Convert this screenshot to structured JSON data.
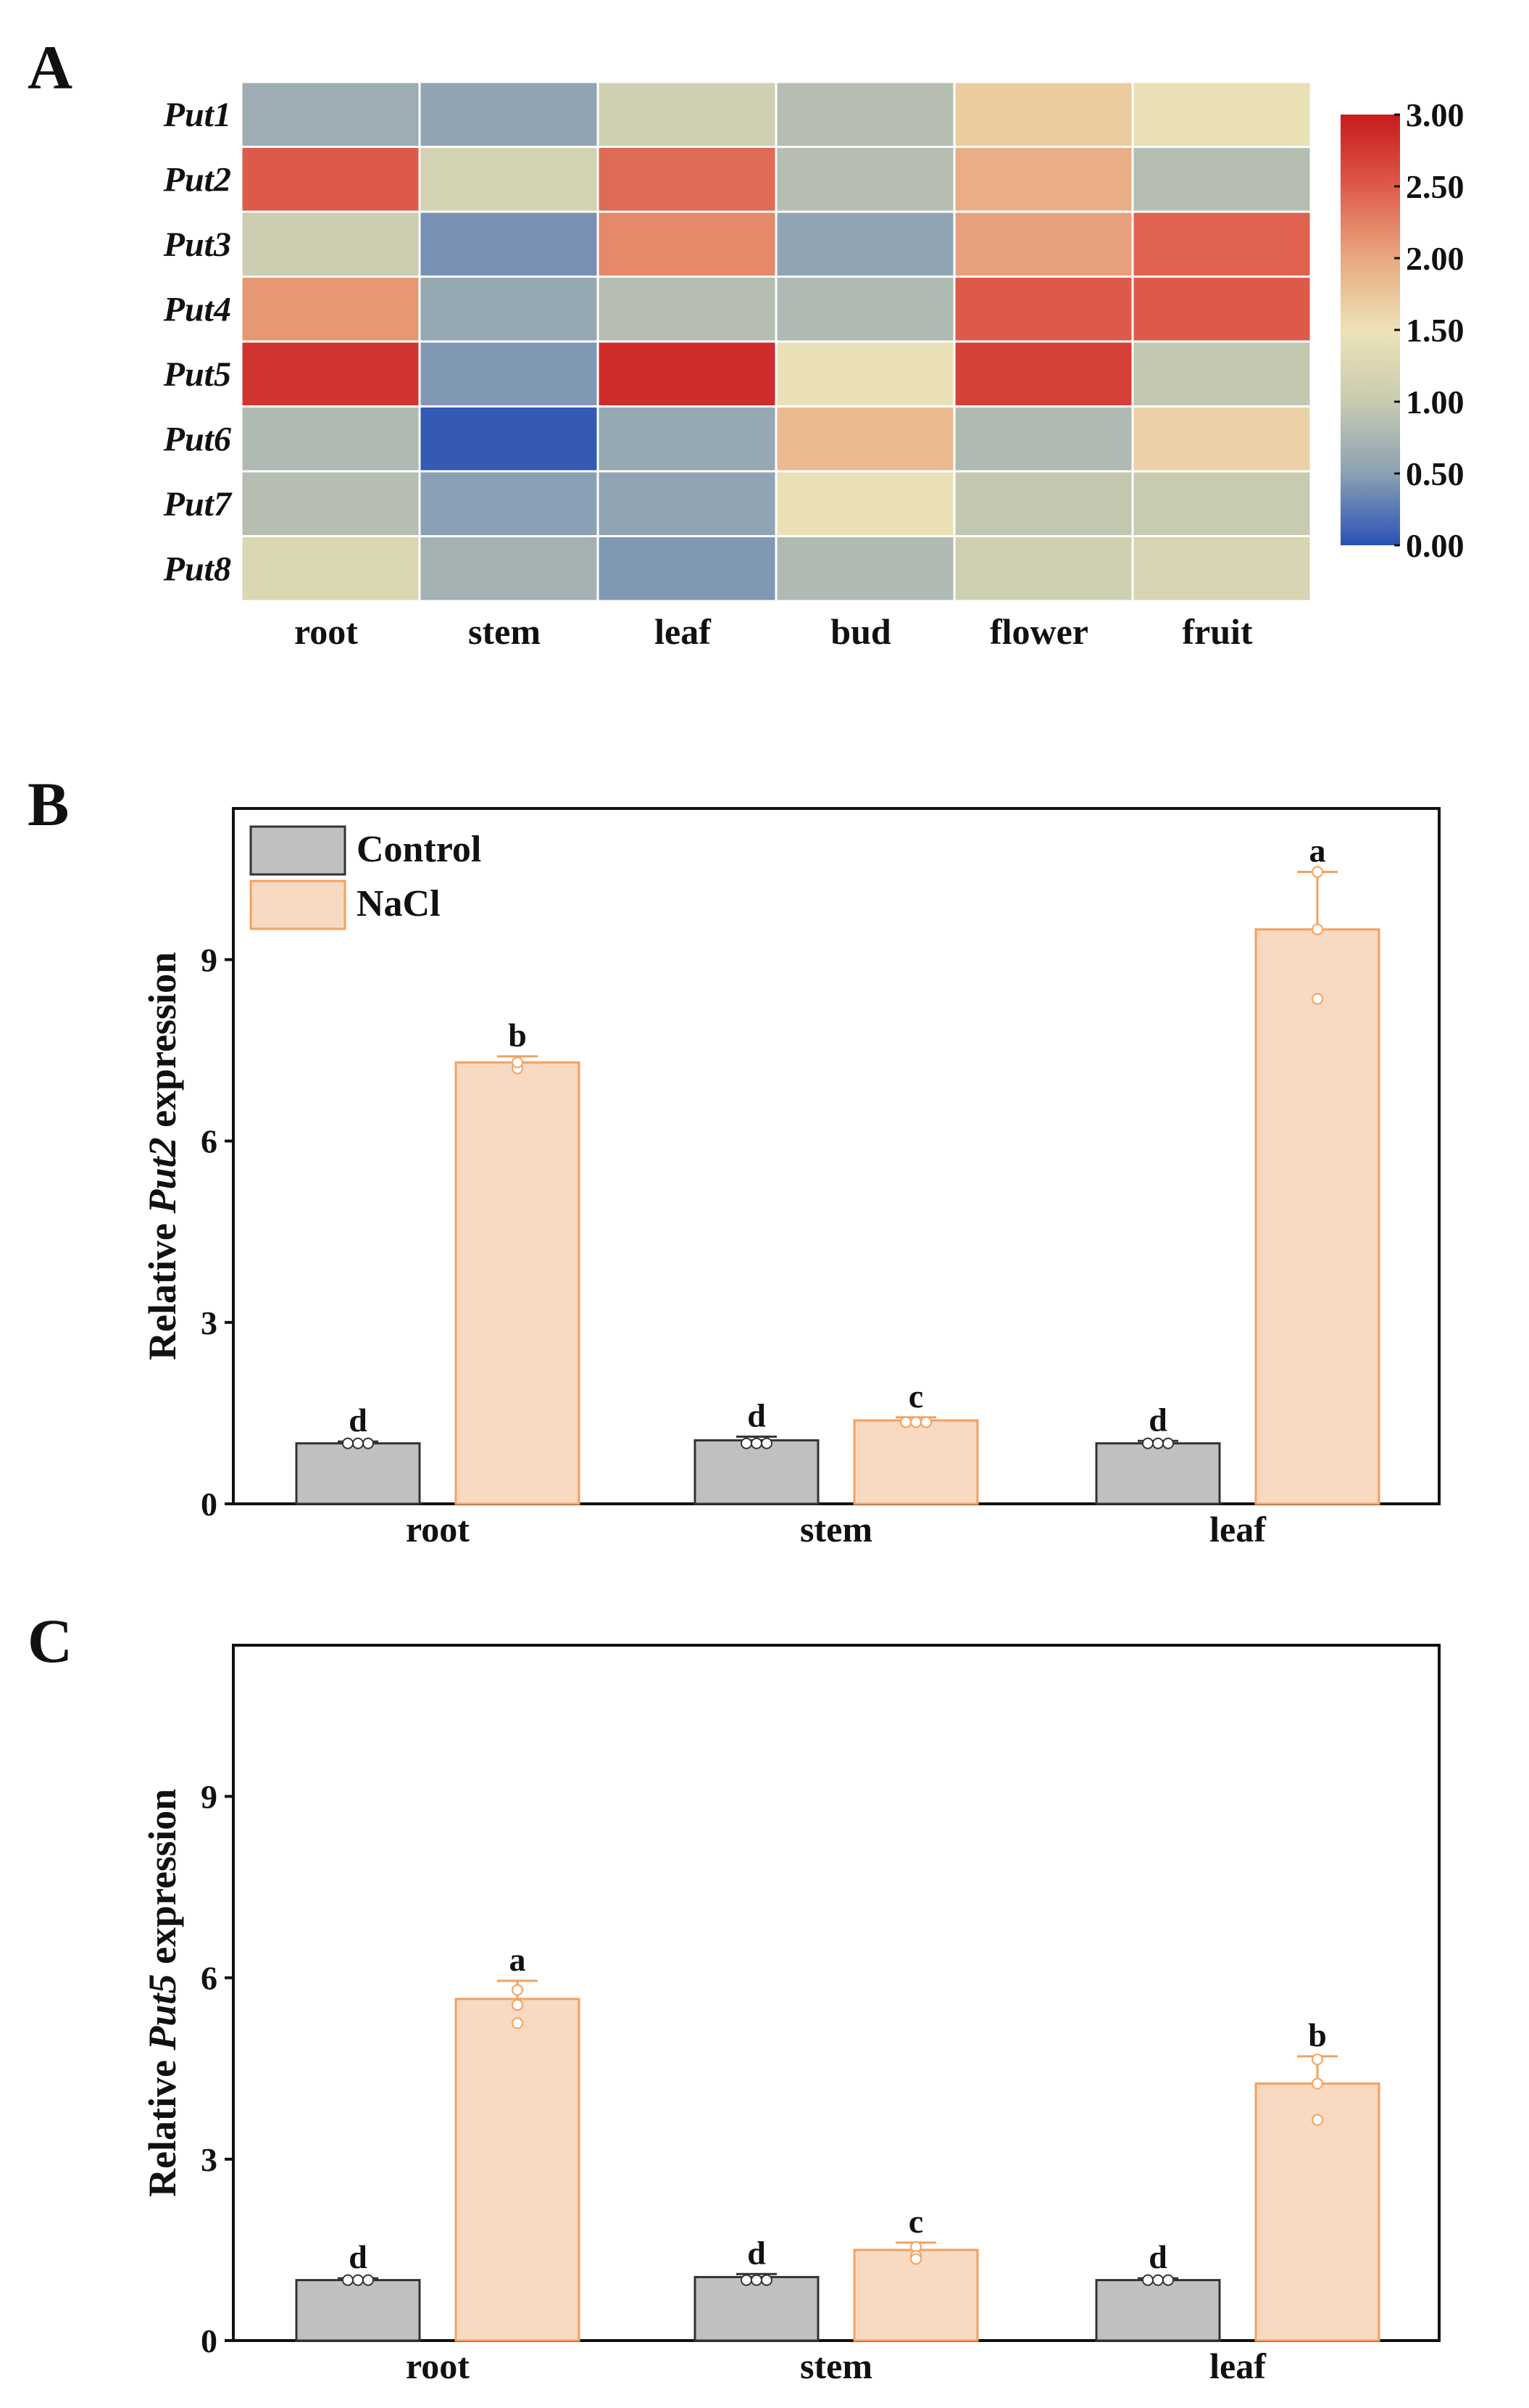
{
  "panels": {
    "a_letter": "A",
    "b_letter": "B",
    "c_letter": "C"
  },
  "heatmap": {
    "type": "heatmap",
    "genes": [
      "Put1",
      "Put2",
      "Put3",
      "Put4",
      "Put5",
      "Put6",
      "Put7",
      "Put8"
    ],
    "tissues": [
      "root",
      "stem",
      "leaf",
      "bud",
      "flower",
      "fruit"
    ],
    "values": [
      [
        0.65,
        0.55,
        1.1,
        0.85,
        1.7,
        1.45
      ],
      [
        2.5,
        1.15,
        2.4,
        0.85,
        1.95,
        0.85
      ],
      [
        1.05,
        0.4,
        2.2,
        0.55,
        2.05,
        2.45
      ],
      [
        2.1,
        0.6,
        0.85,
        0.8,
        2.5,
        2.5
      ],
      [
        2.8,
        0.45,
        2.85,
        1.45,
        2.7,
        0.95
      ],
      [
        0.8,
        0.05,
        0.6,
        1.85,
        0.8,
        1.65
      ],
      [
        0.85,
        0.5,
        0.55,
        1.45,
        0.95,
        1.0
      ],
      [
        1.25,
        0.7,
        0.45,
        0.8,
        1.1,
        1.2
      ]
    ],
    "colorbar": {
      "min": 0,
      "max": 3,
      "ticks": [
        "0.00",
        "0.50",
        "1.00",
        "1.50",
        "2.00",
        "2.50",
        "3.00"
      ],
      "tick_values": [
        0,
        0.5,
        1,
        1.5,
        2,
        2.5,
        3
      ],
      "colors": [
        "#2a52b6",
        "#8aa0b4",
        "#c8cbb0",
        "#ede3b6",
        "#e8a880",
        "#dd5a4a",
        "#c81a1e"
      ]
    }
  },
  "bar_legend": {
    "control": "Control",
    "nacl": "NaCl",
    "control_color": "#c0c0c0",
    "control_edge": "#333333",
    "nacl_color": "#f8d9c2",
    "nacl_edge": "#f4a15f"
  },
  "chart_data": [
    {
      "type": "bar",
      "panel": "B",
      "categories": [
        "root",
        "stem",
        "leaf"
      ],
      "ylabel_prefix": "Relative ",
      "ylabel_gene": "Put2",
      "ylabel_suffix": " expression",
      "ylim": [
        0,
        11.5
      ],
      "yticks": [
        0,
        3,
        6,
        9
      ],
      "series": [
        {
          "name": "Control",
          "values": [
            1.0,
            1.05,
            1.0
          ],
          "errors": [
            0.03,
            0.06,
            0.04
          ],
          "points": [
            [
              1.0,
              1.0,
              1.0
            ],
            [
              1.0,
              1.0,
              1.0
            ],
            [
              1.0,
              1.0,
              1.0
            ]
          ],
          "letters": [
            "d",
            "d",
            "d"
          ]
        },
        {
          "name": "NaCl",
          "values": [
            7.3,
            1.38,
            9.5
          ],
          "errors": [
            0.1,
            0.05,
            0.95
          ],
          "points": [
            [
              7.2,
              7.2,
              7.3
            ],
            [
              1.35,
              1.35,
              1.35
            ],
            [
              10.45,
              9.5,
              8.35
            ]
          ],
          "letters": [
            "b",
            "c",
            "a"
          ]
        }
      ]
    },
    {
      "type": "bar",
      "panel": "C",
      "categories": [
        "root",
        "stem",
        "leaf"
      ],
      "ylabel_prefix": "Relative ",
      "ylabel_gene": "Put5",
      "ylabel_suffix": " expression",
      "ylim": [
        0,
        11.5
      ],
      "yticks": [
        0,
        3,
        6,
        9
      ],
      "series": [
        {
          "name": "Control",
          "values": [
            1.0,
            1.05,
            1.0
          ],
          "errors": [
            0.03,
            0.05,
            0.03
          ],
          "points": [
            [
              1.0,
              1.0,
              1.0
            ],
            [
              1.0,
              1.0,
              1.0
            ],
            [
              1.0,
              1.0,
              1.0
            ]
          ],
          "letters": [
            "d",
            "d",
            "d"
          ]
        },
        {
          "name": "NaCl",
          "values": [
            5.65,
            1.5,
            4.25
          ],
          "errors": [
            0.3,
            0.12,
            0.45
          ],
          "points": [
            [
              5.8,
              5.55,
              5.25
            ],
            [
              1.55,
              1.4,
              1.35
            ],
            [
              4.65,
              4.25,
              3.65
            ]
          ],
          "letters": [
            "a",
            "c",
            "b"
          ]
        }
      ]
    }
  ]
}
